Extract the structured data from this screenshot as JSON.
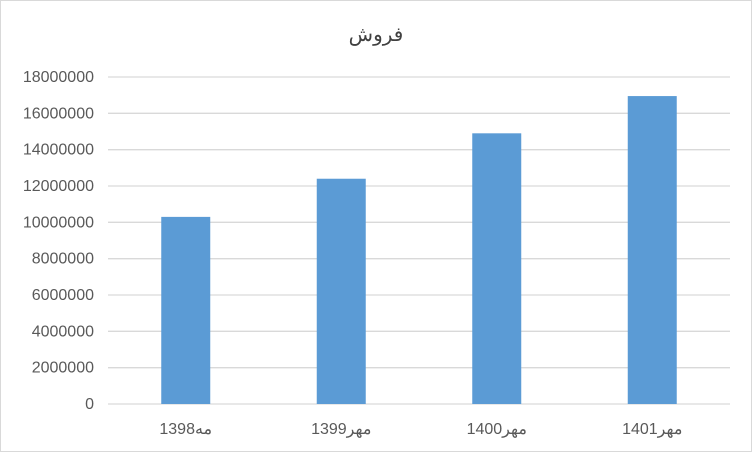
{
  "chart_data": {
    "type": "bar",
    "title": "فروش",
    "categories": [
      "1398مه",
      "1399مهر",
      "1400مهر",
      "1401مهر"
    ],
    "values": [
      10300000,
      12400000,
      14900000,
      16950000
    ],
    "yticks": [
      "0",
      "2000000",
      "4000000",
      "6000000",
      "8000000",
      "10000000",
      "12000000",
      "14000000",
      "16000000",
      "18000000"
    ],
    "ylim": [
      0,
      18000000
    ],
    "grid": true,
    "legend": "none",
    "bar_color": "#5b9bd5",
    "xlabel": "",
    "ylabel": ""
  }
}
